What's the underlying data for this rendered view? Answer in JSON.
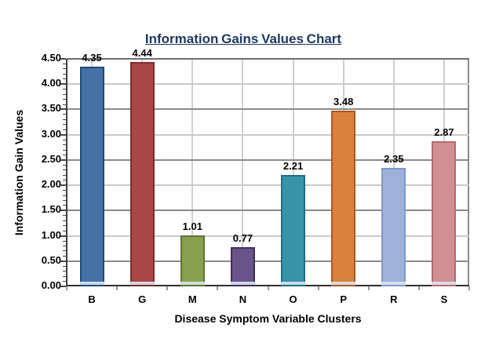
{
  "chart_data": {
    "type": "bar",
    "title": "Information Gains Values Chart",
    "xlabel": "Disease Symptom Variable Clusters",
    "ylabel": "Information Gain Values",
    "categories": [
      "B",
      "G",
      "M",
      "N",
      "O",
      "P",
      "R",
      "S"
    ],
    "values": [
      4.35,
      4.44,
      1.01,
      0.77,
      2.21,
      3.48,
      2.35,
      2.87
    ],
    "data_labels": [
      "4.35",
      "4.44",
      "1.01",
      "0.77",
      "2.21",
      "3.48",
      "2.35",
      "2.87"
    ],
    "ylim": [
      0,
      4.5
    ],
    "ytick_step": 0.5,
    "ytick_labels": [
      "0.00",
      "0.50",
      "1.00",
      "1.50",
      "2.00",
      "2.50",
      "3.00",
      "3.50",
      "4.00",
      "4.50"
    ],
    "minor_tick_step": 0.1,
    "grid": "on",
    "legend": "none",
    "bar_fill_colors": [
      "#4472a7",
      "#a84743",
      "#89a14e",
      "#6a5389",
      "#3793a8",
      "#d9823e",
      "#9db1d9",
      "#d08f93"
    ],
    "bar_border_colors": [
      "#1e4a76",
      "#7b2f2d",
      "#5e7434",
      "#413056",
      "#1f6d80",
      "#aa5a1f",
      "#7e98c9",
      "#b56a70"
    ],
    "colors": {
      "title_text": "#1f3864",
      "axis_text": "#000000",
      "grid_major": "#8a8a8a",
      "grid_minor": "#c9c9c9",
      "grid_top": "#6e6e6e",
      "grid_vertical": "#cfcfcf",
      "axis_line": "#3f3f3f",
      "bar_base_highlight": "#d9e4f1",
      "background": "#ffffff"
    }
  }
}
